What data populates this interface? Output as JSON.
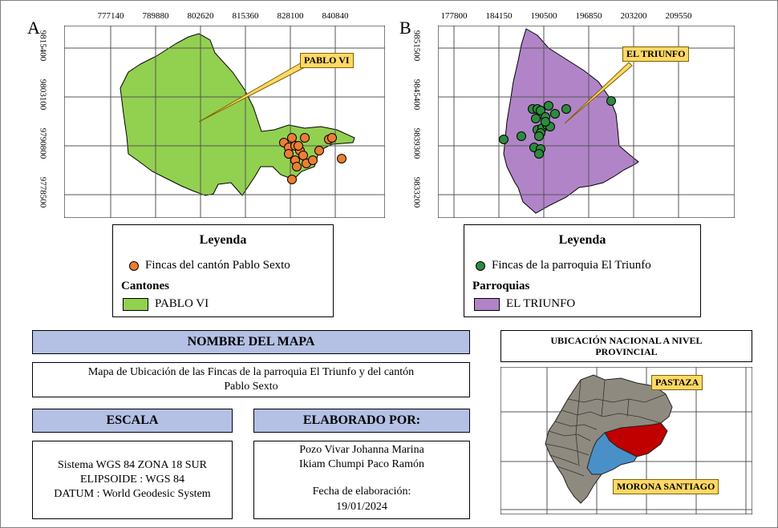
{
  "panel_a": {
    "letter": "A",
    "x_ticks": [
      "777140",
      "789880",
      "802620",
      "815360",
      "828100",
      "840840"
    ],
    "y_ticks": [
      "9815400",
      "9803100",
      "9790800",
      "9778500"
    ],
    "callout": "PABLO VI",
    "fill_color": "#92d050",
    "point_color": "#ed7d31"
  },
  "panel_b": {
    "letter": "B",
    "x_ticks": [
      "177800",
      "184150",
      "190500",
      "196850",
      "203200",
      "209550"
    ],
    "y_ticks": [
      "9851500",
      "9845400",
      "9839300",
      "9833200"
    ],
    "callout": "EL TRIUNFO",
    "fill_color": "#b184c8",
    "point_color": "#2e8b3e"
  },
  "legend_a": {
    "title": "Leyenda",
    "point_label": "Fincas del cantón Pablo Sexto",
    "group_title": "Cantones",
    "area_label": "PABLO VI"
  },
  "legend_b": {
    "title": "Leyenda",
    "point_label": "Fincas de la parroquia El Triunfo",
    "group_title": "Parroquias",
    "area_label": "EL TRIUNFO"
  },
  "nombre": {
    "header": "NOMBRE DEL MAPA",
    "line1": "Mapa de Ubicación de las Fincas de la parroquia El Triunfo y del cantón",
    "line2": "Pablo Sexto"
  },
  "escala": {
    "header": "ESCALA",
    "line1": "Sistema WGS 84 ZONA 18 SUR",
    "line2": "ELIPSOIDE : WGS 84",
    "line3": "DATUM : World Geodesic System"
  },
  "elaborado": {
    "header": "ELABORADO POR:",
    "author1": "Pozo Vivar Johanna Marina",
    "author2": "Ikiam Chumpi Paco Ramón",
    "date_label": "Fecha de elaboración:",
    "date": "19/01/2024"
  },
  "ubicacion": {
    "title_line1": "UBICACIÓN NACIONAL A NIVEL",
    "title_line2": "PROVINCIAL",
    "label_pastaza": "PASTAZA",
    "label_morona": "MORONA SANTIAGO",
    "pastaza_color": "#c00000",
    "morona_color": "#4a90c8",
    "country_color": "#8f8a80"
  }
}
